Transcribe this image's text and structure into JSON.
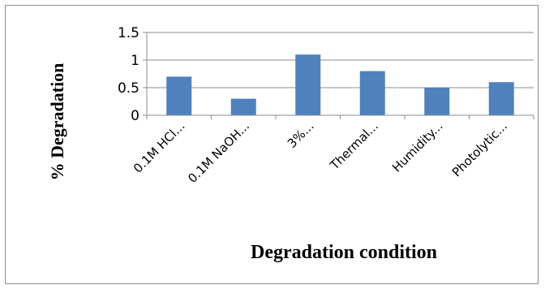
{
  "chart_data": {
    "type": "bar",
    "categories": [
      "0.1M HCl...",
      "0.1M NaOH...",
      "3%...",
      "Thermal...",
      "Humidity...",
      "Photolytic..."
    ],
    "values": [
      0.7,
      0.3,
      1.1,
      0.8,
      0.5,
      0.6
    ],
    "xlabel": "Degradation condition",
    "ylabel": "% Degradation",
    "ylim": [
      0,
      1.5
    ],
    "yticks": [
      "0",
      "0.5",
      "1",
      "1.5"
    ],
    "grid": true,
    "legend": "none",
    "bar_color": "#4f81bd",
    "grid_color": "#8c8c8c"
  }
}
